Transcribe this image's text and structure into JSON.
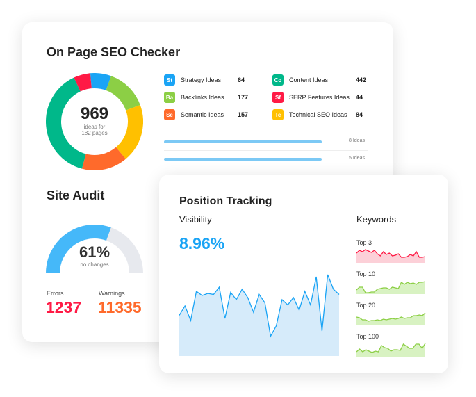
{
  "seo": {
    "title": "On Page SEO Checker",
    "total": "969",
    "sub1": "ideas for",
    "sub2": "182 pages",
    "ideas": [
      {
        "abbr": "St",
        "label": "Strategy Ideas",
        "count": "64",
        "color": "#1aa4f5"
      },
      {
        "abbr": "Ba",
        "label": "Backlinks Ideas",
        "count": "177",
        "color": "#8ccf45"
      },
      {
        "abbr": "Se",
        "label": "Semantic Ideas",
        "count": "157",
        "color": "#ff6a2b"
      },
      {
        "abbr": "Co",
        "label": "Content Ideas",
        "count": "442",
        "color": "#00b88a"
      },
      {
        "abbr": "Sf",
        "label": "SERP Features Ideas",
        "count": "44",
        "color": "#ff1a45"
      },
      {
        "abbr": "Te",
        "label": "Technical SEO Ideas",
        "count": "84",
        "color": "#ffc000"
      }
    ],
    "rows": [
      {
        "label": "8 Ideas"
      },
      {
        "label": "5 Ideas"
      }
    ]
  },
  "audit": {
    "title": "Site Audit",
    "percent": "61%",
    "percent_value": 61,
    "sub": "no changes",
    "errors_label": "Errors",
    "errors": "1237",
    "warnings_label": "Warnings",
    "warnings": "11335"
  },
  "tracking": {
    "title": "Position Tracking",
    "visibility_label": "Visibility",
    "visibility": "8.96%",
    "keywords_label": "Keywords",
    "keywords": [
      {
        "label": "Top 3",
        "color": "#ff1a45"
      },
      {
        "label": "Top 10",
        "color": "#8ccf45"
      },
      {
        "label": "Top 20",
        "color": "#8ccf45"
      },
      {
        "label": "Top 100",
        "color": "#8ccf45"
      }
    ]
  }
}
